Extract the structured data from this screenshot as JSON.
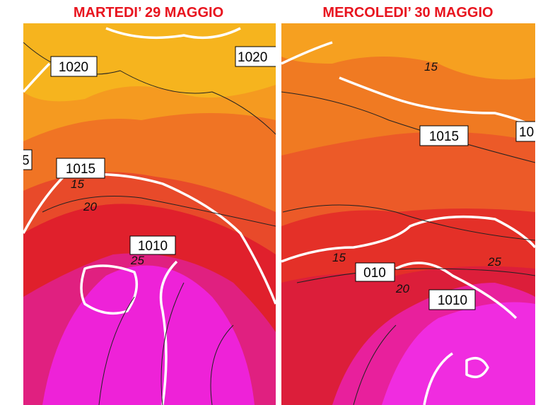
{
  "panels": [
    {
      "title": "MARTEDI’ 29 MAGGIO",
      "labels": [
        "1020",
        "1020",
        "5",
        "1015",
        "15",
        "20",
        "1010",
        "25"
      ]
    },
    {
      "title": "MERCOLEDI’ 30 MAGGIO",
      "labels": [
        "15",
        "1015",
        "10",
        "15",
        "010",
        "25",
        "20",
        "1010"
      ]
    }
  ]
}
